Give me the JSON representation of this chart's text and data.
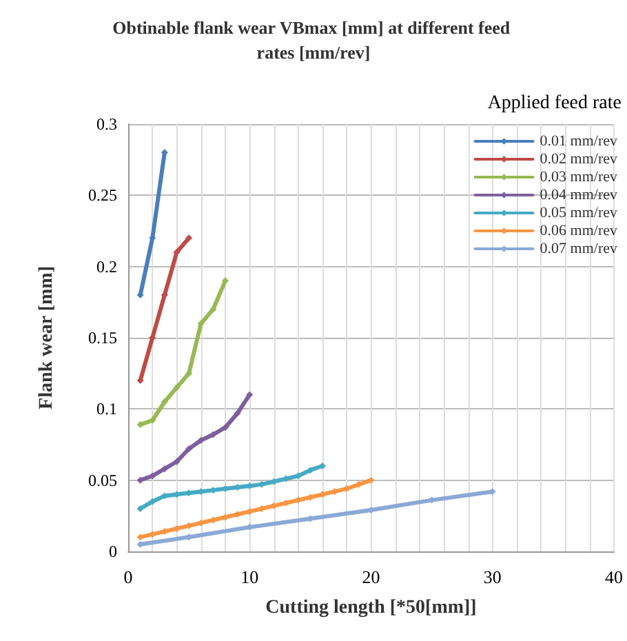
{
  "chart_data": {
    "type": "line",
    "title": "Obtinable flank wear VBmax [mm] at different feed rates [mm/rev]",
    "xlabel": "Cutting length [*50[mm]]",
    "ylabel": "Flank wear [mm]",
    "legend_title": "Applied feed rate",
    "xlim": [
      0,
      40
    ],
    "xticks": [
      0,
      {
        "value": 2,
        "label": null
      },
      {
        "value": 4,
        "label": null
      },
      {
        "value": 6,
        "label": null
      },
      {
        "value": 8,
        "label": null
      },
      10,
      {
        "value": 12,
        "label": null
      },
      {
        "value": 14,
        "label": null
      },
      {
        "value": 16,
        "label": null
      },
      {
        "value": 18,
        "label": null
      },
      20,
      {
        "value": 22,
        "label": null
      },
      {
        "value": 24,
        "label": null
      },
      {
        "value": 26,
        "label": null
      },
      {
        "value": 28,
        "label": null
      },
      30,
      {
        "value": 32,
        "label": null
      },
      {
        "value": 34,
        "label": null
      },
      {
        "value": 36,
        "label": null
      },
      {
        "value": 38,
        "label": null
      },
      40
    ],
    "ylim": [
      0,
      0.3
    ],
    "yticks": [
      0,
      0.05,
      0.1,
      0.15,
      0.2,
      0.25,
      0.3
    ],
    "grid": true,
    "legend": "top right",
    "marker": "diamond",
    "line_style": "solid",
    "series": [
      {
        "name": "0.01 mm/rev",
        "color": "#4a7ebb",
        "x": [
          1,
          2,
          3
        ],
        "values": [
          0.18,
          0.22,
          0.28
        ]
      },
      {
        "name": "0.02 mm/rev",
        "color": "#be4b48",
        "x": [
          1,
          2,
          3,
          4,
          5
        ],
        "values": [
          0.12,
          0.15,
          0.18,
          0.21,
          0.22
        ]
      },
      {
        "name": "0.03 mm/rev",
        "color": "#98b954",
        "x": [
          1,
          2,
          3,
          4,
          5,
          6,
          7,
          8
        ],
        "values": [
          0.089,
          0.092,
          0.105,
          0.115,
          0.125,
          0.16,
          0.17,
          0.19
        ]
      },
      {
        "name": "0.04 mm/rev",
        "color": "#7d60a0",
        "x": [
          1,
          2,
          3,
          4,
          5,
          6,
          7,
          8,
          9,
          10
        ],
        "values": [
          0.05,
          0.053,
          0.058,
          0.063,
          0.072,
          0.078,
          0.082,
          0.087,
          0.097,
          0.11
        ]
      },
      {
        "name": "0.05 mm/rev",
        "color": "#46aac5",
        "x": [
          1,
          2,
          3,
          4,
          5,
          6,
          7,
          8,
          9,
          10,
          11,
          12,
          13,
          14,
          15,
          16
        ],
        "values": [
          0.03,
          0.035,
          0.039,
          0.04,
          0.041,
          0.042,
          0.043,
          0.044,
          0.045,
          0.046,
          0.047,
          0.049,
          0.051,
          0.053,
          0.057,
          0.06
        ]
      },
      {
        "name": "0.06 mm/rev",
        "color": "#f79646",
        "x": [
          1,
          2,
          3,
          4,
          5,
          6,
          7,
          8,
          9,
          10,
          11,
          12,
          13,
          14,
          15,
          16,
          17,
          18,
          19,
          20
        ],
        "values": [
          0.01,
          0.012,
          0.014,
          0.016,
          0.018,
          0.02,
          0.022,
          0.024,
          0.026,
          0.028,
          0.03,
          0.032,
          0.034,
          0.036,
          0.038,
          0.04,
          0.042,
          0.044,
          0.047,
          0.05
        ]
      },
      {
        "name": "0.07 mm/rev",
        "color": "#8aa9d6",
        "x": [
          1,
          5,
          10,
          15,
          20,
          25,
          30
        ],
        "values": [
          0.005,
          0.01,
          0.017,
          0.023,
          0.029,
          0.036,
          0.042
        ]
      }
    ]
  }
}
